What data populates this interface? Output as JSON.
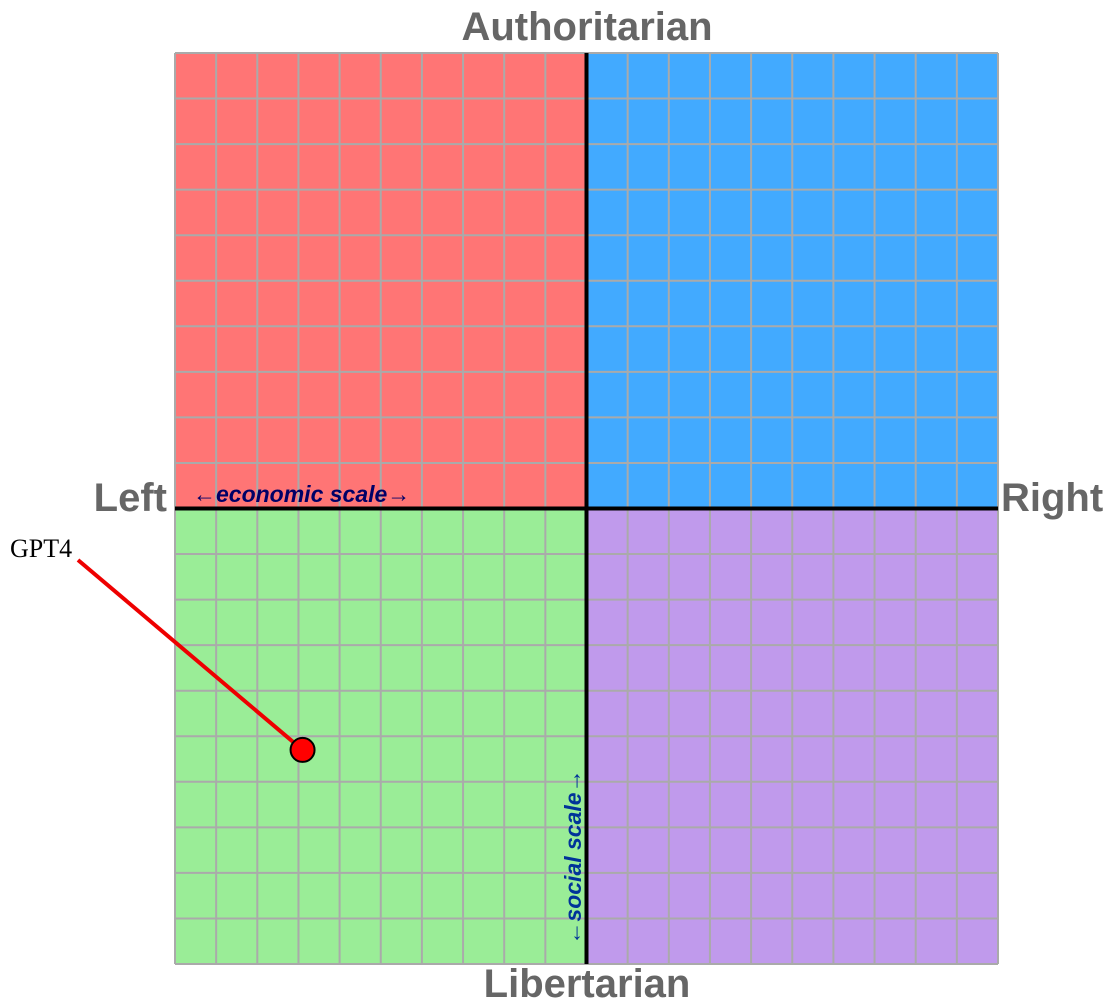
{
  "chart_data": {
    "type": "scatter",
    "title": "",
    "xlabel": "←economic scale→",
    "ylabel": "←social scale→",
    "axis_labels": {
      "top": "Authoritarian",
      "bottom": "Libertarian",
      "left": "Left",
      "right": "Right"
    },
    "xlim": [
      -10,
      10
    ],
    "ylim": [
      -10,
      10
    ],
    "grid": true,
    "grid_step": 1,
    "quadrant_colors": {
      "top_left": "#ff7575",
      "top_right": "#42aaff",
      "bottom_left": "#9aed97",
      "bottom_right": "#c09aec"
    },
    "points": [
      {
        "label": "GPT4",
        "x": -6.9,
        "y": -5.3,
        "color": "#ff0000"
      }
    ]
  },
  "colors": {
    "axis_word": "#666666",
    "economic_scale_text": "#000066",
    "social_scale_text": "#003399",
    "grid_line": "#aaaaaa",
    "axis_line": "#000000",
    "leader_line": "#ee0000"
  }
}
